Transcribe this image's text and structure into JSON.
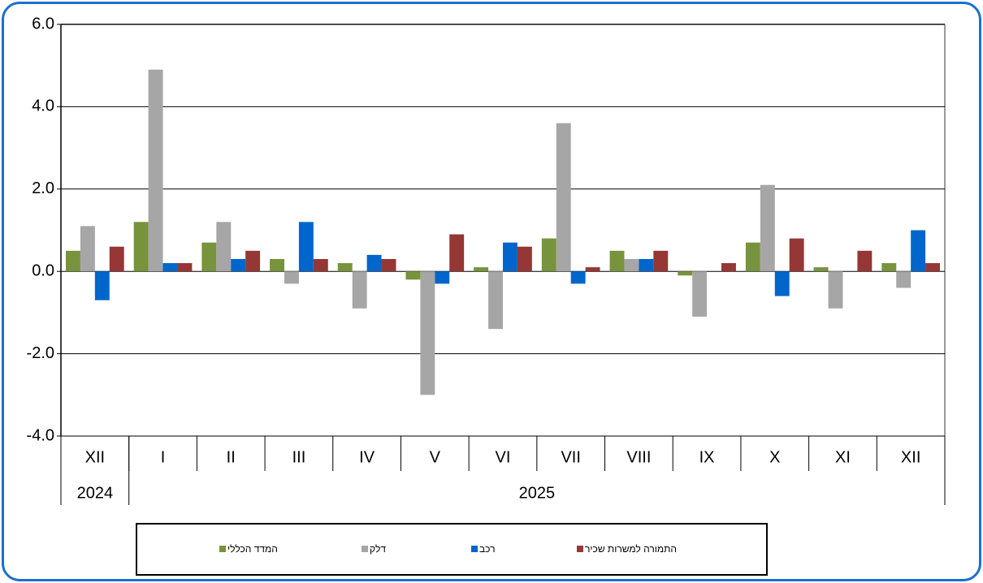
{
  "chart_data": {
    "type": "bar",
    "categories": [
      "XII",
      "I",
      "II",
      "III",
      "IV",
      "V",
      "VI",
      "VII",
      "VIII",
      "IX",
      "X",
      "XI",
      "XII"
    ],
    "x_groups": [
      {
        "label": "2024",
        "count": 1
      },
      {
        "label": "2025",
        "count": 12
      }
    ],
    "series": [
      {
        "name": "המדד הכללי",
        "color": "#77933c",
        "values": [
          0.5,
          1.2,
          0.7,
          0.3,
          0.2,
          -0.2,
          0.1,
          0.8,
          0.5,
          -0.1,
          0.7,
          0.1,
          0.2
        ]
      },
      {
        "name": "דלק",
        "color": "#a6a6a6",
        "values": [
          1.1,
          4.9,
          1.2,
          -0.3,
          -0.9,
          -3.0,
          -1.4,
          3.6,
          0.3,
          -1.1,
          2.1,
          -0.9,
          -0.4
        ]
      },
      {
        "name": "רכב",
        "color": "#0066cc",
        "values": [
          -0.7,
          0.2,
          0.3,
          1.2,
          0.4,
          -0.3,
          0.7,
          -0.3,
          0.3,
          0,
          -0.6,
          0,
          1.0
        ]
      },
      {
        "name": "התמורה למשרות שכיר",
        "color": "#953735",
        "values": [
          0.6,
          0.2,
          0.5,
          0.3,
          0.3,
          0.9,
          0.6,
          0.1,
          0.5,
          0.2,
          0.8,
          0.5,
          0.2
        ]
      }
    ],
    "ylim": [
      -4,
      6
    ],
    "yticks": [
      {
        "value": -4,
        "label": "-4.0"
      },
      {
        "value": -2,
        "label": "-2.0"
      },
      {
        "value": 0,
        "label": "0.0"
      },
      {
        "value": 2,
        "label": "2.0"
      },
      {
        "value": 4,
        "label": "4.0"
      },
      {
        "value": 6,
        "label": "6.0"
      }
    ],
    "grid": true,
    "legend": "bottom"
  }
}
